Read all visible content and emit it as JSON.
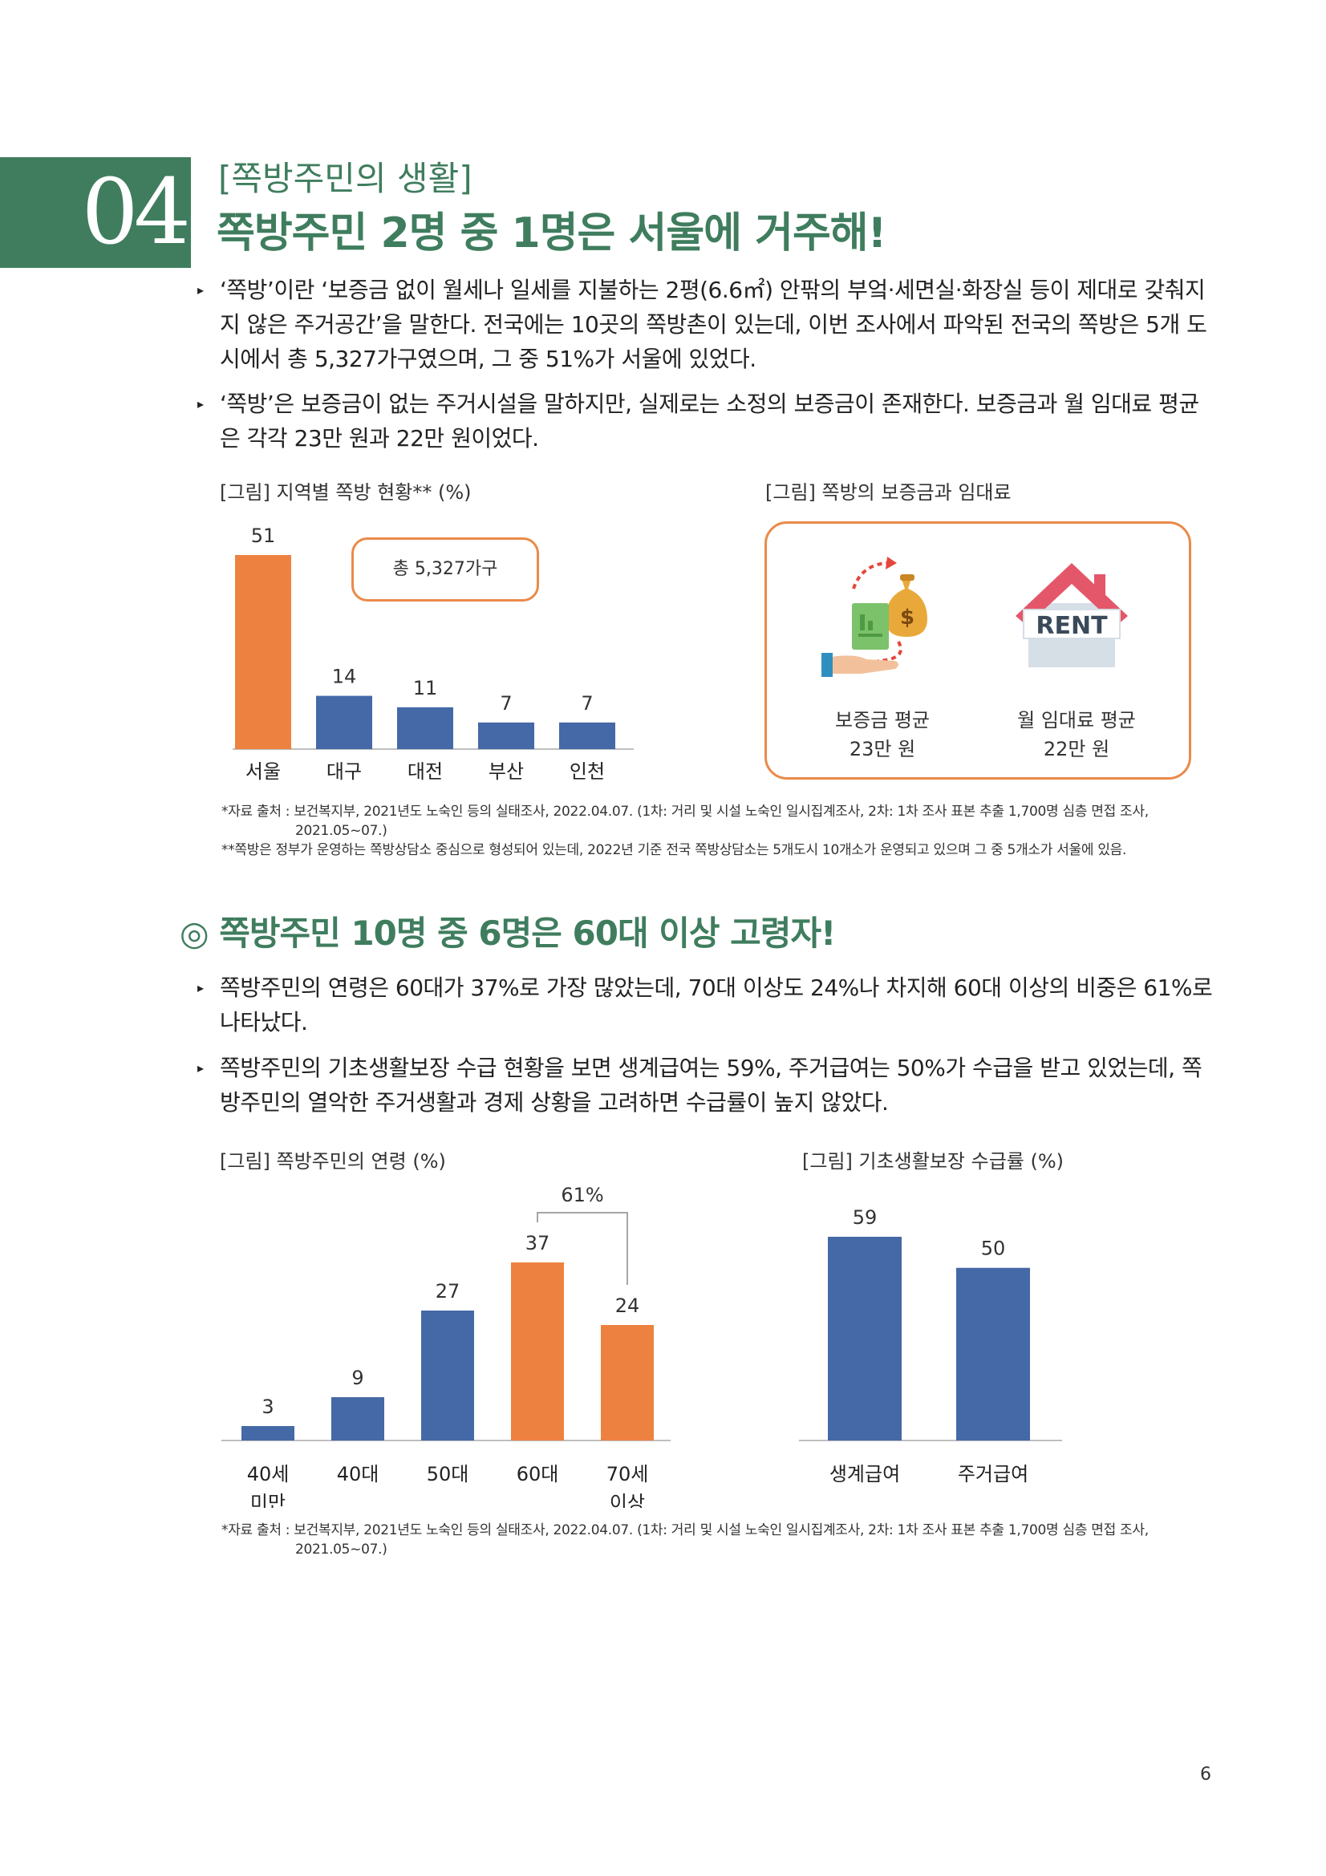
{
  "section": {
    "number": "04",
    "subtitle": "[쪽방주민의 생활]",
    "title": "쪽방주민 2명 중 1명은 서울에 거주해!"
  },
  "bullets_top": [
    {
      "mark": "▸",
      "text": "‘쪽방’이란 ‘보증금 없이 월세나 일세를 지불하는 2평(6.6㎡) 안팎의 부엌·세면실·화장실 등이 제대로 갖춰지지 않은 주거공간’을 말한다. 전국에는 10곳의 쪽방촌이 있는데, 이번 조사에서 파악된 전국의 쪽방은 5개 도시에서 총 5,327가구였으며, 그 중 51%가 서울에 있었다."
    },
    {
      "mark": "▸",
      "text": "‘쪽방’은 보증금이 없는 주거시설을 말하지만, 실제로는 소정의 보증금이 존재한다. 보증금과 월 임대료 평균은 각각 23만 원과 22만 원이었다."
    }
  ],
  "figure1": {
    "caption": "[그림] 지역별 쪽방 현황** (%)",
    "total_label": "총 5,327가구"
  },
  "figure2": {
    "caption": "[그림] 쪽방의 보증금과 임대료",
    "deposit_label": "보증금 평균",
    "deposit_value": "23만 원",
    "rent_label": "월 임대료 평균",
    "rent_value": "22만 원",
    "rent_sign": "RENT",
    "dollar_sign": "$"
  },
  "source1": {
    "line1": "*자료 출처 : 보건복지부, 2021년도 노숙인 등의 실태조사, 2022.04.07. (1차: 거리 및 시설 노숙인 일시집계조사, 2차: 1차 조사 표본 추출 1,700명 심층 면접 조사,",
    "line2": "2021.05~07.)",
    "line3": "**쪽방은 정부가 운영하는 쪽방상담소 중심으로 형성되어 있는데, 2022년 기준 전국 쪽방상담소는 5개도시 10개소가 운영되고 있으며 그 중 5개소가 서울에 있음."
  },
  "heading2": "◎ 쪽방주민 10명 중 6명은 60대 이상 고령자!",
  "bullets_bottom": [
    {
      "mark": "▸",
      "text": "쪽방주민의 연령은 60대가 37%로 가장 많았는데, 70대 이상도 24%나 차지해 60대 이상의 비중은 61%로 나타났다."
    },
    {
      "mark": "▸",
      "text": "쪽방주민의 기초생활보장 수급 현황을 보면 생계급여는 59%, 주거급여는 50%가 수급을 받고 있었는데, 쪽방주민의 열악한 주거생활과 경제 상황을 고려하면 수급률이 높지 않았다."
    }
  ],
  "figure3": {
    "caption": "[그림] 쪽방주민의 연령 (%)",
    "bracket_label": "61%"
  },
  "figure4": {
    "caption": "[그림] 기초생활보장 수급률 (%)"
  },
  "source2": {
    "line1": "*자료 출처 : 보건복지부, 2021년도 노숙인 등의 실태조사, 2022.04.07. (1차: 거리 및 시설 노숙인 일시집계조사, 2차: 1차 조사 표본 추출 1,700명 심층 면접 조사,",
    "line2": "2021.05~07.)"
  },
  "page_number": "6",
  "colors": {
    "green": "#3f7d5e",
    "orange": "#ed8240",
    "blue": "#4569a6"
  },
  "chart_data": [
    {
      "type": "bar",
      "title": "[그림] 지역별 쪽방 현황** (%)",
      "categories": [
        "서울",
        "대구",
        "대전",
        "부산",
        "인천"
      ],
      "values": [
        51,
        14,
        11,
        7,
        7
      ],
      "highlight": [
        true,
        false,
        false,
        false,
        false
      ],
      "ylim": [
        0,
        51
      ]
    },
    {
      "type": "bar",
      "title": "[그림] 쪽방주민의 연령 (%)",
      "categories": [
        [
          "40세",
          "미만"
        ],
        [
          "40대"
        ],
        [
          "50대"
        ],
        [
          "60대"
        ],
        [
          "70세",
          "이상"
        ]
      ],
      "values": [
        3,
        9,
        27,
        37,
        24
      ],
      "highlight": [
        false,
        false,
        false,
        true,
        true
      ],
      "annotation": "61%",
      "ylim": [
        0,
        37
      ]
    },
    {
      "type": "bar",
      "title": "[그림] 기초생활보장 수급률 (%)",
      "categories": [
        "생계급여",
        "주거급여"
      ],
      "values": [
        59,
        50
      ],
      "ylim": [
        0,
        59
      ]
    }
  ]
}
